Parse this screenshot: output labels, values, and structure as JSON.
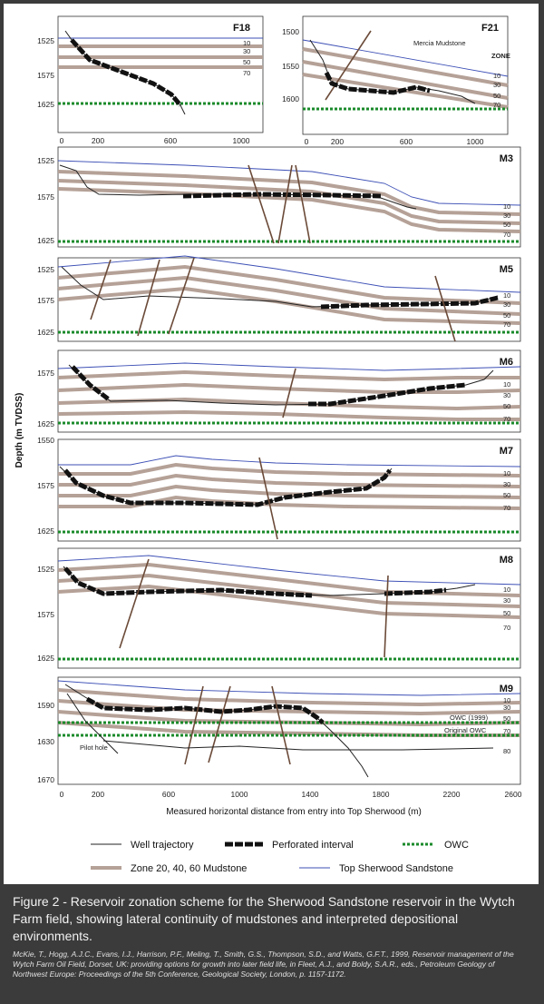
{
  "y_axis_title": "Depth (m TVDSS)",
  "x_axis_title": "Measured horizontal distance from entry into Top Sherwood (m)",
  "x_ticks_main": [
    "0",
    "200",
    "600",
    "1000",
    "1400",
    "1800",
    "2200",
    "2600"
  ],
  "x_ticks_f18": [
    "0",
    "200",
    "600",
    "1000"
  ],
  "x_ticks_f21": [
    "0",
    "200",
    "600",
    "1000"
  ],
  "zone_labels": [
    "10",
    "30",
    "50",
    "70"
  ],
  "panels": {
    "f18": {
      "title": "F18",
      "y_ticks": [
        "1525",
        "1575",
        "1625"
      ]
    },
    "f21": {
      "title": "F21",
      "y_ticks": [
        "1500",
        "1550",
        "1600"
      ],
      "mercia_label": "Mercia Mudstone",
      "zone_header": "ZONE"
    },
    "m3": {
      "title": "M3",
      "y_ticks": [
        "1525",
        "1575",
        "1625"
      ]
    },
    "m5": {
      "title": "M5",
      "y_ticks": [
        "1525",
        "1575",
        "1625"
      ]
    },
    "m6": {
      "title": "M6",
      "y_ticks": [
        "1575",
        "1625"
      ]
    },
    "m7": {
      "title": "M7",
      "y_ticks": [
        "1550",
        "1575",
        "1625"
      ]
    },
    "m8": {
      "title": "M8",
      "y_ticks": [
        "1525",
        "1575",
        "1625"
      ]
    },
    "m9": {
      "title": "M9",
      "y_ticks": [
        "1590",
        "1630",
        "1670"
      ],
      "owc_1999": "OWC (1999)",
      "owc_original": "Original OWC",
      "pilot_hole": "Pilot hole",
      "zone_80": "80"
    }
  },
  "legend": {
    "well": "Well trajectory",
    "perforated": "Perforated interval",
    "owc": "OWC",
    "mudstone": "Zone 20, 40, 60 Mudstone",
    "top_sherwood": "Top Sherwood Sandstone"
  },
  "colors": {
    "mudstone": "#b5a197",
    "top_sherwood": "#3c4fb5",
    "owc": "#1a8a2a",
    "fault": "#6b4a38",
    "background": "#3b3b3b"
  },
  "caption": "Figure 2 - Reservoir zonation scheme for the Sherwood Sandstone reservoir in the Wytch Farm field, showing lateral continuity of mudstones and interpreted depositional environments.",
  "citation": "McKie, T., Hogg, A.J.C., Evans, I.J., Harrison, P.F., Meling, T., Smith, G.S., Thompson, S.D., and Watts, G.F.T., 1999, Reservoir management of the Wytch Farm Oil Field, Dorset, UK: providing options for growth into later field life, in Fleet, A.J., and Boldy, S.A.R., eds., Petroleum Geology of Northwest Europe: Proceedings of the 5th Conference, Geological Society, London, p. 1157-1172."
}
